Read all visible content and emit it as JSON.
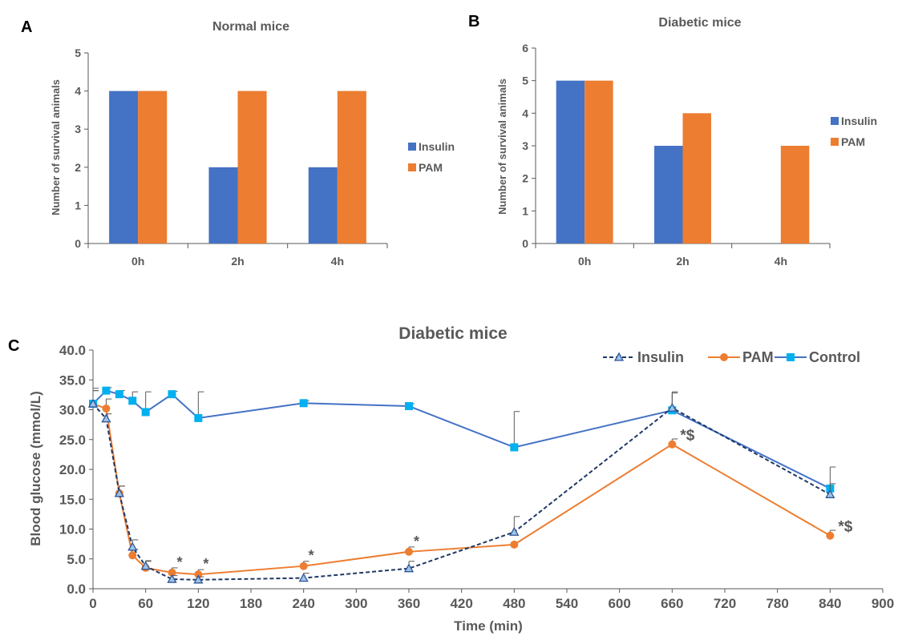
{
  "chart_data": [
    {
      "panel": "A",
      "type": "bar",
      "title": "Normal mice",
      "xlabel": "",
      "ylabel": "Number of survival animals",
      "categories": [
        "0h",
        "2h",
        "4h"
      ],
      "yticks": [
        "0",
        "1",
        "2",
        "3",
        "4",
        "5"
      ],
      "ylim": [
        0,
        5
      ],
      "series": [
        {
          "name": "Insulin",
          "values": [
            4,
            2,
            2
          ]
        },
        {
          "name": "PAM",
          "values": [
            4,
            4,
            4
          ]
        }
      ],
      "legend": "right",
      "grid": false
    },
    {
      "panel": "B",
      "type": "bar",
      "title": "Diabetic mice",
      "xlabel": "",
      "ylabel": "Number of survival animals",
      "categories": [
        "0h",
        "2h",
        "4h"
      ],
      "yticks": [
        "0",
        "1",
        "2",
        "3",
        "4",
        "5",
        "6"
      ],
      "ylim": [
        0,
        6
      ],
      "series": [
        {
          "name": "Insulin",
          "values": [
            5,
            3,
            0
          ]
        },
        {
          "name": "PAM",
          "values": [
            5,
            4,
            3
          ]
        }
      ],
      "legend": "right",
      "grid": false
    },
    {
      "panel": "C",
      "type": "line",
      "title": "Diabetic mice",
      "xlabel": "Time (min)",
      "ylabel": "Blood glucose (mmol/L)",
      "xlim": [
        0,
        900
      ],
      "ylim": [
        0,
        40
      ],
      "xticks": [
        "0",
        "60",
        "120",
        "180",
        "240",
        "300",
        "360",
        "420",
        "480",
        "540",
        "600",
        "660",
        "720",
        "780",
        "840",
        "900"
      ],
      "yticks": [
        "0.0",
        "5.0",
        "10.0",
        "15.0",
        "20.0",
        "25.0",
        "30.0",
        "35.0",
        "40.0"
      ],
      "legend": "top-right",
      "grid": false,
      "series": [
        {
          "name": "Insulin",
          "x": [
            0,
            15,
            30,
            45,
            60,
            90,
            120,
            240,
            360,
            480,
            660,
            840
          ],
          "y": [
            31.0,
            28.5,
            16.0,
            7.0,
            3.8,
            1.6,
            1.5,
            1.8,
            3.4,
            9.5,
            30.3,
            15.8
          ],
          "err": [
            2.2,
            0.8,
            1.2,
            1.2,
            0.8,
            0.6,
            0.5,
            0.8,
            1.2,
            2.6,
            2.5,
            1.8
          ]
        },
        {
          "name": "PAM",
          "x": [
            0,
            15,
            30,
            45,
            60,
            90,
            120,
            240,
            360,
            480,
            660,
            840
          ],
          "y": [
            31.0,
            30.2,
            16.0,
            5.6,
            3.5,
            2.7,
            2.4,
            3.8,
            6.2,
            7.4,
            24.2,
            8.9
          ],
          "err": [
            2.2,
            1.6,
            1.2,
            1.0,
            1.2,
            0.8,
            0.8,
            0.8,
            0.8,
            0.0,
            0.9,
            0.9
          ]
        },
        {
          "name": "Control",
          "x": [
            0,
            15,
            30,
            45,
            60,
            90,
            120,
            240,
            360,
            480,
            660,
            840
          ],
          "y": [
            31.0,
            33.2,
            32.6,
            31.5,
            29.6,
            32.6,
            28.6,
            31.1,
            30.6,
            23.7,
            29.9,
            16.8
          ],
          "err": [
            2.6,
            0.5,
            0.6,
            1.5,
            3.4,
            0.5,
            4.4,
            0.4,
            0.4,
            6.0,
            3.1,
            3.6
          ]
        }
      ],
      "annotations": [
        {
          "x": 90,
          "y": 2.7,
          "text": "*"
        },
        {
          "x": 120,
          "y": 2.4,
          "text": "*"
        },
        {
          "x": 240,
          "y": 3.8,
          "text": "*"
        },
        {
          "x": 360,
          "y": 6.2,
          "text": "*"
        },
        {
          "x": 660,
          "y": 24.2,
          "text": "*$"
        },
        {
          "x": 840,
          "y": 8.9,
          "text": "*$"
        }
      ]
    }
  ],
  "colors": {
    "insulin_bar": "#4472C4",
    "pam": "#ED7D31",
    "insulin_line": "#1F3864",
    "control_line": "#4472C4",
    "control_marker": "#00B0F0",
    "axis": "#595959",
    "text": "#595959"
  }
}
